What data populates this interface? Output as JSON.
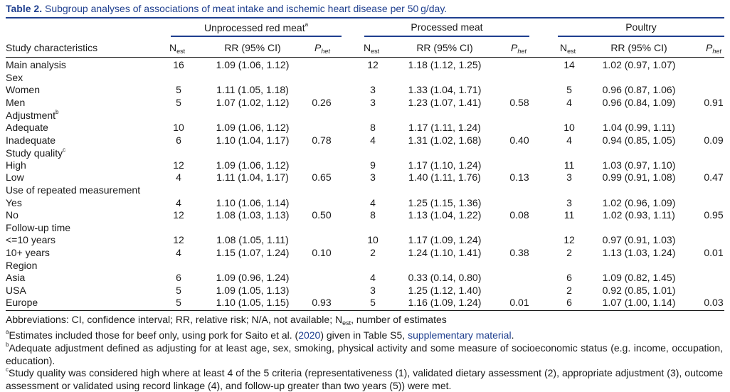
{
  "caption": {
    "label": "Table 2.",
    "text": "Subgroup analyses of associations of meat intake and ischemic heart disease per 50 g/day."
  },
  "groups": {
    "red": "Unprocessed red meat",
    "red_mark": "a",
    "processed": "Processed meat",
    "poultry": "Poultry"
  },
  "columns": {
    "study": "Study characteristics",
    "n_main": "N",
    "n_sub": "est",
    "rr": "RR (95% CI)",
    "p_main": "P",
    "p_sub": "het"
  },
  "rows": [
    {
      "label": "Main analysis",
      "n1": "16",
      "rr1": "1.09 (1.06, 1.12)",
      "p1": "",
      "n2": "12",
      "rr2": "1.18 (1.12, 1.25)",
      "p2": "",
      "n3": "14",
      "rr3": "1.02 (0.97, 1.07)",
      "p3": ""
    },
    {
      "label": "Sex",
      "n1": "",
      "rr1": "",
      "p1": "",
      "n2": "",
      "rr2": "",
      "p2": "",
      "n3": "",
      "rr3": "",
      "p3": ""
    },
    {
      "label": "Women",
      "n1": "5",
      "rr1": "1.11 (1.05, 1.18)",
      "p1": "",
      "n2": "3",
      "rr2": "1.33 (1.04, 1.71)",
      "p2": "",
      "n3": "5",
      "rr3": "0.96 (0.87, 1.06)",
      "p3": ""
    },
    {
      "label": "Men",
      "n1": "5",
      "rr1": "1.07 (1.02, 1.12)",
      "p1": "0.26",
      "n2": "3",
      "rr2": "1.23 (1.07, 1.41)",
      "p2": "0.58",
      "n3": "4",
      "rr3": "0.96 (0.84, 1.09)",
      "p3": "0.91"
    },
    {
      "label": "Adjustment",
      "mark": "b",
      "n1": "",
      "rr1": "",
      "p1": "",
      "n2": "",
      "rr2": "",
      "p2": "",
      "n3": "",
      "rr3": "",
      "p3": ""
    },
    {
      "label": "Adequate",
      "n1": "10",
      "rr1": "1.09 (1.06, 1.12)",
      "p1": "",
      "n2": "8",
      "rr2": "1.17 (1.11, 1.24)",
      "p2": "",
      "n3": "10",
      "rr3": "1.04 (0.99, 1.11)",
      "p3": ""
    },
    {
      "label": "Inadequate",
      "n1": "6",
      "rr1": "1.10 (1.04, 1.17)",
      "p1": "0.78",
      "n2": "4",
      "rr2": "1.31 (1.02, 1.68)",
      "p2": "0.40",
      "n3": "4",
      "rr3": "0.94 (0.85, 1.05)",
      "p3": "0.09"
    },
    {
      "label": "Study quality",
      "mark": "c",
      "n1": "",
      "rr1": "",
      "p1": "",
      "n2": "",
      "rr2": "",
      "p2": "",
      "n3": "",
      "rr3": "",
      "p3": ""
    },
    {
      "label": "High",
      "n1": "12",
      "rr1": "1.09 (1.06, 1.12)",
      "p1": "",
      "n2": "9",
      "rr2": "1.17 (1.10, 1.24)",
      "p2": "",
      "n3": "11",
      "rr3": "1.03 (0.97, 1.10)",
      "p3": ""
    },
    {
      "label": "Low",
      "n1": "4",
      "rr1": "1.11 (1.04, 1.17)",
      "p1": "0.65",
      "n2": "3",
      "rr2": "1.40 (1.11, 1.76)",
      "p2": "0.13",
      "n3": "3",
      "rr3": "0.99 (0.91, 1.08)",
      "p3": "0.47"
    },
    {
      "label": "Use of repeated measurement",
      "n1": "",
      "rr1": "",
      "p1": "",
      "n2": "",
      "rr2": "",
      "p2": "",
      "n3": "",
      "rr3": "",
      "p3": ""
    },
    {
      "label": "Yes",
      "n1": "4",
      "rr1": "1.10 (1.06, 1.14)",
      "p1": "",
      "n2": "4",
      "rr2": "1.25 (1.15, 1.36)",
      "p2": "",
      "n3": "3",
      "rr3": "1.02 (0.96, 1.09)",
      "p3": ""
    },
    {
      "label": "No",
      "n1": "12",
      "rr1": "1.08 (1.03, 1.13)",
      "p1": "0.50",
      "n2": "8",
      "rr2": "1.13 (1.04, 1.22)",
      "p2": "0.08",
      "n3": "11",
      "rr3": "1.02 (0.93, 1.11)",
      "p3": "0.95"
    },
    {
      "label": "Follow-up time",
      "n1": "",
      "rr1": "",
      "p1": "",
      "n2": "",
      "rr2": "",
      "p2": "",
      "n3": "",
      "rr3": "",
      "p3": ""
    },
    {
      "label": "<=10 years",
      "n1": "12",
      "rr1": "1.08 (1.05, 1.11)",
      "p1": "",
      "n2": "10",
      "rr2": "1.17 (1.09, 1.24)",
      "p2": "",
      "n3": "12",
      "rr3": "0.97 (0.91, 1.03)",
      "p3": ""
    },
    {
      "label": "10+ years",
      "n1": "4",
      "rr1": "1.15 (1.07, 1.24)",
      "p1": "0.10",
      "n2": "2",
      "rr2": "1.24 (1.10, 1.41)",
      "p2": "0.38",
      "n3": "2",
      "rr3": "1.13 (1.03, 1.24)",
      "p3": "0.01"
    },
    {
      "label": "Region",
      "n1": "",
      "rr1": "",
      "p1": "",
      "n2": "",
      "rr2": "",
      "p2": "",
      "n3": "",
      "rr3": "",
      "p3": ""
    },
    {
      "label": "Asia",
      "n1": "6",
      "rr1": "1.09 (0.96, 1.24)",
      "p1": "",
      "n2": "4",
      "rr2": "0.33 (0.14, 0.80)",
      "p2": "",
      "n3": "6",
      "rr3": "1.09 (0.82, 1.45)",
      "p3": ""
    },
    {
      "label": "USA",
      "n1": "5",
      "rr1": "1.09 (1.05, 1.13)",
      "p1": "",
      "n2": "3",
      "rr2": "1.25 (1.12, 1.40)",
      "p2": "",
      "n3": "2",
      "rr3": "0.92 (0.85, 1.01)",
      "p3": ""
    },
    {
      "label": "Europe",
      "n1": "5",
      "rr1": "1.10 (1.05, 1.15)",
      "p1": "0.93",
      "n2": "5",
      "rr2": "1.16 (1.09, 1.24)",
      "p2": "0.01",
      "n3": "6",
      "rr3": "1.07 (1.00, 1.14)",
      "p3": "0.03"
    }
  ],
  "footnotes": {
    "abbrev_pre": "Abbreviations: CI, confidence interval; RR, relative risk; N/A, not available; N",
    "abbrev_sub": "est",
    "abbrev_post": ", number of estimates",
    "a_mark": "a",
    "a_pre": "Estimates included those for beef only, using pork for Saito et al. (",
    "a_year": "2020",
    "a_mid": ") given in Table S5, ",
    "a_link": "supplementary material",
    "a_end": ".",
    "b_mark": "b",
    "b_text": "Adequate adjustment defined as adjusting for at least age, sex, smoking, physical activity and some measure of socioeconomic status (e.g. income, occupation, education).",
    "c_mark": "c",
    "c_text": "Study quality was considered high where at least 4 of the 5 criteria (representativeness (1), validated dietary assessment (2), appropriate adjustment (3), outcome assessment or validated using record linkage (4), and follow-up greater than two years (5)) were met."
  },
  "colors": {
    "accent": "#1f3f8f",
    "text": "#1a1a1a"
  }
}
